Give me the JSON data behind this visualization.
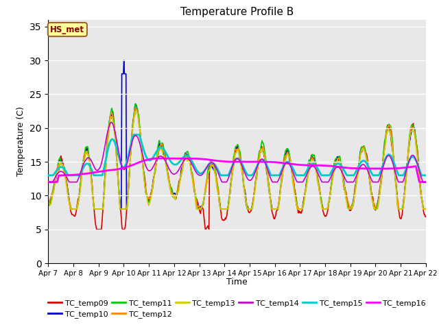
{
  "title": "Temperature Profile B",
  "xlabel": "Time",
  "ylabel": "Temperature (C)",
  "ylim": [
    0,
    36
  ],
  "yticks": [
    0,
    5,
    10,
    15,
    20,
    25,
    30,
    35
  ],
  "x_tick_labels": [
    "Apr 7",
    "Apr 8",
    "Apr 9",
    "Apr 10",
    "Apr 11",
    "Apr 12",
    "Apr 13",
    "Apr 14",
    "Apr 15",
    "Apr 16",
    "Apr 17",
    "Apr 18",
    "Apr 19",
    "Apr 20",
    "Apr 21",
    "Apr 22"
  ],
  "annotation_text": "HS_met",
  "annotation_bg": "#ffff99",
  "annotation_border": "#996633",
  "bg_color": "#e8e8e8",
  "series_colors": {
    "TC_temp09": "#dd0000",
    "TC_temp10": "#0000dd",
    "TC_temp11": "#00cc00",
    "TC_temp12": "#ff8800",
    "TC_temp13": "#cccc00",
    "TC_temp14": "#cc00cc",
    "TC_temp15": "#00cccc",
    "TC_temp16": "#ff00ff"
  },
  "linewidths": {
    "TC_temp09": 1.2,
    "TC_temp10": 1.2,
    "TC_temp11": 1.2,
    "TC_temp12": 1.2,
    "TC_temp13": 1.2,
    "TC_temp14": 1.2,
    "TC_temp15": 2.0,
    "TC_temp16": 2.0
  }
}
